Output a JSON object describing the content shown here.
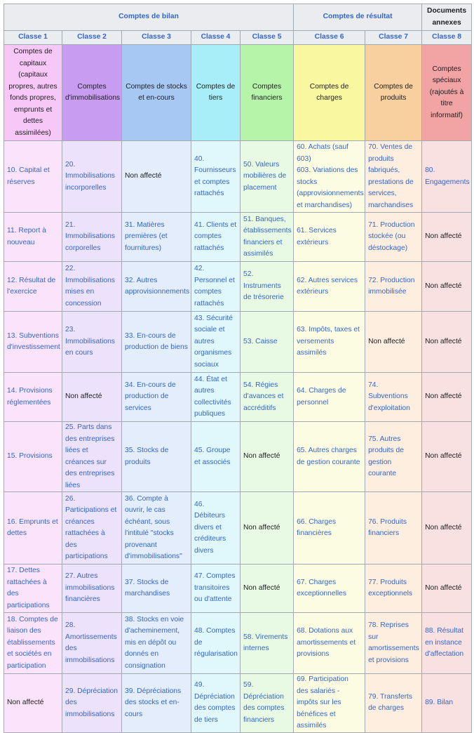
{
  "header": {
    "groups": [
      "Comptes de bilan",
      "Comptes de résultat",
      "Documents annexes"
    ],
    "classes": [
      "Classe 1",
      "Classe 2",
      "Classe 3",
      "Classe 4",
      "Classe 5",
      "Classe 6",
      "Classe 7",
      "Classe 8"
    ],
    "descriptions": [
      "Comptes de capitaux (capitaux propres, autres fonds propres, emprunts et dettes assimilées)",
      "Comptes d'immobilisations",
      "Comptes de stocks et en-cours",
      "Comptes de tiers",
      "Comptes financiers",
      "Comptes de charges",
      "Comptes de produits",
      "Comptes spéciaux (rajoutés à titre informatif)"
    ]
  },
  "unassigned_label": "Non affecté",
  "rows": [
    [
      "10. Capital et réserves",
      "20. Immobilisations incorporelles",
      null,
      "40. Fournisseurs et comptes rattachés",
      "50. Valeurs mobilières de placement",
      "60. Achats (sauf 603)\n603. Variations des stocks (approvisionnements et marchandises)",
      "70. Ventes de produits fabriqués, prestations de services, marchandises",
      "80. Engagements"
    ],
    [
      "11. Report à nouveau",
      "21. Immobilisations corporelles",
      "31. Matières premières (et fournitures)",
      "41. Clients et comptes rattachés",
      "51. Banques, établissements financiers et assimilés",
      "61. Services extérieurs",
      "71. Production stockée (ou déstockage)",
      null
    ],
    [
      "12. Résultat de l'exercice",
      "22. Immobilisations mises en concession",
      "32. Autres approvisionnements",
      "42. Personnel et comptes rattachés",
      "52. Instruments de trésorerie",
      "62. Autres services extérieurs",
      "72. Production immobilisée",
      null
    ],
    [
      "13. Subventions d'investissement",
      "23. Immobilisations en cours",
      "33. En-cours de production de biens",
      "43. Sécurité sociale et autres organismes sociaux",
      "53. Caisse",
      "63. Impôts, taxes et versements assimilés",
      null,
      null
    ],
    [
      "14. Provisions réglementées",
      null,
      "34. En-cours de production de services",
      "44. État et autres collectivités publiques",
      "54. Régies d'avances et accréditifs",
      "64. Charges de personnel",
      "74. Subventions d'exploitation",
      null
    ],
    [
      "15. Provisions",
      "25. Parts dans des entreprises liées et créances sur des entreprises liées",
      "35. Stocks de produits",
      "45. Groupe et associés",
      null,
      "65. Autres charges de gestion courante",
      "75. Autres produits de gestion courante",
      null
    ],
    [
      "16. Emprunts et dettes",
      "26. Participations et créances rattachées à des participations",
      "36. Compte à ouvrir, le cas échéant, sous l'intitulé \"stocks provenant d'immobilisations\"",
      "46. Débiteurs divers et créditeurs divers",
      null,
      "66. Charges financières",
      "76. Produits financiers",
      null
    ],
    [
      "17. Dettes rattachées à des participations",
      "27. Autres immobilisations financières",
      "37. Stocks de marchandises",
      "47. Comptes transitoires ou d'attente",
      null,
      "67. Charges exceptionnelles",
      "77. Produits exceptionnels",
      null
    ],
    [
      "18. Comptes de liaison des établissements et sociétés en participation",
      "28. Amortissements des immobilisations",
      "38. Stocks en voie d'acheminement, mis en dépôt ou donnés en consignation",
      "48. Comptes de régularisation",
      "58. Virements internes",
      "68. Dotations aux amortissements et provisions",
      "78. Reprises sur amortissements et provisions",
      "88. Résultat en instance d'affectation"
    ],
    [
      null,
      "29. Dépréciation des immobilisations",
      "39. Dépréciations des stocks et en-cours",
      "49. Dépréciation des comptes de tiers",
      "59. Dépréciation des comptes financiers",
      "69. Participation des salariés - impôts sur les bénéfices et assimilés",
      "79. Transferts de charges",
      "89. Bilan"
    ]
  ]
}
